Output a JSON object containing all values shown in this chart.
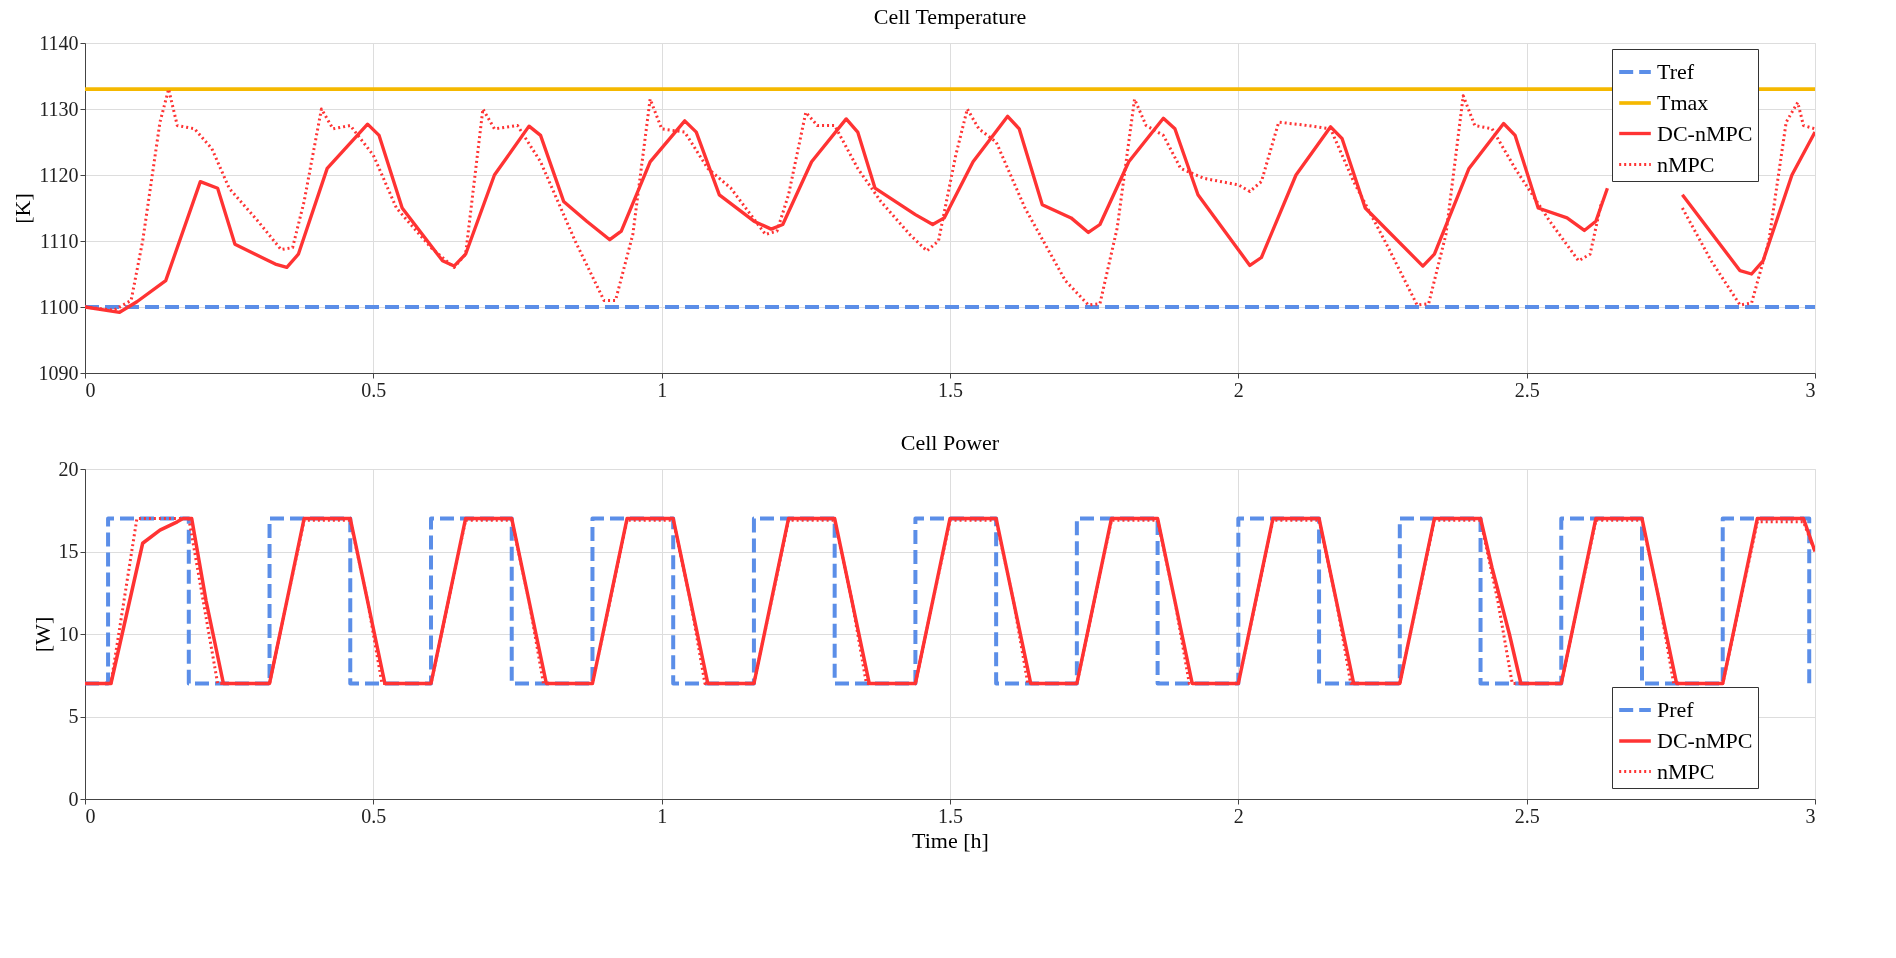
{
  "chart_data": [
    {
      "type": "line",
      "title": "Cell Temperature",
      "ylabel": "[K]",
      "xlim": [
        0,
        3
      ],
      "xticks": [
        0,
        0.5,
        1,
        1.5,
        2,
        2.5,
        3
      ],
      "ylim": [
        1090,
        1140
      ],
      "yticks": [
        1090,
        1100,
        1110,
        1120,
        1130,
        1140
      ],
      "grid": true,
      "legend": "top right",
      "series": [
        {
          "name": "Tref",
          "color": "#5b8ee8",
          "line_style": "dashed",
          "x": [
            0,
            3
          ],
          "values": [
            1100,
            1100
          ]
        },
        {
          "name": "Tmax",
          "color": "#f5b800",
          "line_style": "solid",
          "x": [
            0,
            3
          ],
          "values": [
            1133,
            1133
          ]
        },
        {
          "name": "DC-nMPC",
          "color": "#ff3333",
          "line_style": "solid",
          "x": [
            0,
            0.06,
            0.09,
            0.14,
            0.2,
            0.23,
            0.26,
            0.33,
            0.35,
            0.37,
            0.42,
            0.49,
            0.51,
            0.55,
            0.62,
            0.64,
            0.66,
            0.71,
            0.77,
            0.79,
            0.83,
            0.87,
            0.91,
            0.93,
            0.98,
            1.04,
            1.06,
            1.1,
            1.16,
            1.19,
            1.21,
            1.26,
            1.32,
            1.34,
            1.37,
            1.44,
            1.47,
            1.49,
            1.54,
            1.6,
            1.62,
            1.66,
            1.71,
            1.74,
            1.76,
            1.81,
            1.87,
            1.89,
            1.93,
            2.02,
            2.04,
            2.1,
            2.16,
            2.18,
            2.22,
            2.32,
            2.34,
            2.4,
            2.46,
            2.48,
            2.52,
            2.57,
            2.6,
            2.62,
            2.64,
            2.7,
            2.77,
            2.87,
            2.89,
            2.91,
            2.96,
            3.0
          ],
          "values": [
            1100,
            1099.2,
            1100.8,
            1104,
            1119,
            1118,
            1109.5,
            1106.5,
            1106,
            1108,
            1121,
            1127.7,
            1126,
            1115,
            1107,
            1106.2,
            1108,
            1120,
            1127.4,
            1126,
            1116,
            1113,
            1110.2,
            1111.5,
            1122,
            1128.2,
            1126.5,
            1117,
            1113,
            1111.8,
            1112.5,
            1122,
            1128.5,
            1126.5,
            1118,
            1114,
            1112.5,
            1113.5,
            1122,
            1128.9,
            1127,
            1115.5,
            1113.5,
            1111.3,
            1112.5,
            1122,
            1128.6,
            1127,
            1117,
            1106.3,
            1107.5,
            1120,
            1127.3,
            1125.5,
            1115,
            1106.2,
            1108,
            1121,
            1127.8,
            1126,
            1115,
            1113.5,
            1111.6,
            1113,
            1118,
            null,
            1117,
            1105.5,
            1105,
            1107,
            1120,
            1126.5
          ]
        },
        {
          "name": "nMPC",
          "color": "#ff3333",
          "line_style": "dotted",
          "x": [
            0,
            0.05,
            0.08,
            0.1,
            0.13,
            0.145,
            0.16,
            0.19,
            0.22,
            0.25,
            0.3,
            0.34,
            0.36,
            0.38,
            0.41,
            0.43,
            0.46,
            0.5,
            0.54,
            0.6,
            0.64,
            0.66,
            0.69,
            0.71,
            0.75,
            0.79,
            0.85,
            0.9,
            0.92,
            0.95,
            0.98,
            1.0,
            1.04,
            1.08,
            1.12,
            1.18,
            1.2,
            1.22,
            1.25,
            1.27,
            1.3,
            1.34,
            1.38,
            1.43,
            1.46,
            1.48,
            1.51,
            1.53,
            1.55,
            1.58,
            1.63,
            1.7,
            1.74,
            1.76,
            1.79,
            1.82,
            1.84,
            1.87,
            1.9,
            1.94,
            2.0,
            2.02,
            2.04,
            2.07,
            2.12,
            2.16,
            2.2,
            2.26,
            2.31,
            2.33,
            2.36,
            2.39,
            2.41,
            2.44,
            2.48,
            2.54,
            2.59,
            2.61,
            2.63,
            2.7,
            2.77,
            2.82,
            2.87,
            2.89,
            2.92,
            2.95,
            2.97,
            2.98,
            3.0
          ],
          "values": [
            1100,
            1099.5,
            1101,
            1110,
            1128,
            1133,
            1127.5,
            1127,
            1124,
            1118,
            1113,
            1108.7,
            1109,
            1116,
            1130,
            1127,
            1127.5,
            1123,
            1115,
            1109,
            1106,
            1108,
            1130,
            1127,
            1127.5,
            1122,
            1110,
            1101,
            1101,
            1111,
            1131.5,
            1127,
            1126.5,
            1121,
            1118,
            1111,
            1111.5,
            1117,
            1129.5,
            1127.5,
            1127.5,
            1121,
            1116,
            1111,
            1108.5,
            1110,
            1123,
            1130,
            1127,
            1125,
            1115,
            1104,
            1100.3,
            1100.5,
            1112,
            1131.5,
            1127.5,
            1126,
            1121,
            1119.5,
            1118.5,
            1117.5,
            1119,
            1128,
            1127.5,
            1127,
            1119,
            1109,
            1100.3,
            1100.5,
            1111,
            1132,
            1127.5,
            1127,
            1121,
            1113,
            1107,
            1108,
            1116,
            null,
            1115,
            1107,
            1100.3,
            1100.6,
            1110,
            1128,
            1131,
            1127.5,
            1127
          ]
        }
      ]
    },
    {
      "type": "line",
      "title": "Cell Power",
      "xlabel": "Time [h]",
      "ylabel": "[W]",
      "xlim": [
        0,
        3
      ],
      "xticks": [
        0,
        0.5,
        1,
        1.5,
        2,
        2.5,
        3
      ],
      "ylim": [
        0,
        20
      ],
      "yticks": [
        0,
        5,
        10,
        15,
        20
      ],
      "grid": true,
      "legend": "bottom right",
      "series": [
        {
          "name": "Pref",
          "color": "#5b8ee8",
          "line_style": "dashed",
          "x": [
            0,
            0.04,
            0.04,
            0.18,
            0.18,
            0.32,
            0.32,
            0.46,
            0.46,
            0.6,
            0.6,
            0.74,
            0.74,
            0.88,
            0.88,
            1.02,
            1.02,
            1.16,
            1.16,
            1.3,
            1.3,
            1.44,
            1.44,
            1.58,
            1.58,
            1.72,
            1.72,
            1.86,
            1.86,
            2.0,
            2.0,
            2.14,
            2.14,
            2.28,
            2.28,
            2.42,
            2.42,
            2.56,
            2.56,
            2.7,
            2.7,
            2.84,
            2.84,
            2.99,
            2.99,
            3.0
          ],
          "values": [
            7,
            7,
            17,
            17,
            7,
            7,
            17,
            17,
            7,
            7,
            17,
            17,
            7,
            7,
            17,
            17,
            7,
            7,
            17,
            17,
            7,
            7,
            17,
            17,
            7,
            7,
            17,
            17,
            7,
            7,
            17,
            17,
            7,
            7,
            17,
            17,
            7,
            7,
            17,
            17,
            7,
            7,
            17,
            17,
            7,
            7
          ]
        },
        {
          "name": "DC-nMPC",
          "color": "#ff3333",
          "line_style": "solid",
          "x": [
            0,
            0.045,
            0.1,
            0.13,
            0.16,
            0.17,
            0.185,
            0.21,
            0.24,
            0.32,
            0.38,
            0.46,
            0.49,
            0.52,
            0.6,
            0.66,
            0.74,
            0.77,
            0.8,
            0.88,
            0.94,
            1.02,
            1.05,
            1.08,
            1.16,
            1.22,
            1.3,
            1.33,
            1.36,
            1.44,
            1.5,
            1.58,
            1.61,
            1.64,
            1.72,
            1.78,
            1.86,
            1.89,
            1.92,
            2.0,
            2.06,
            2.14,
            2.17,
            2.2,
            2.28,
            2.34,
            2.42,
            2.44,
            2.47,
            2.49,
            2.56,
            2.62,
            2.7,
            2.73,
            2.76,
            2.84,
            2.9,
            2.98,
            3.0
          ],
          "values": [
            7,
            7,
            15.5,
            16.3,
            16.8,
            17,
            17,
            12,
            7,
            7,
            17,
            17,
            12,
            7,
            7,
            17,
            17,
            12,
            7,
            7,
            17,
            17,
            12,
            7,
            7,
            17,
            17,
            12,
            7,
            7,
            17,
            17,
            12,
            7,
            7,
            17,
            17,
            12,
            7,
            7,
            17,
            17,
            12,
            7,
            7,
            17,
            17,
            14,
            10,
            7,
            7,
            17,
            17,
            12,
            7,
            7,
            17,
            17,
            15
          ]
        },
        {
          "name": "nMPC",
          "color": "#ff3333",
          "line_style": "dotted",
          "x": [
            0,
            0.045,
            0.09,
            0.18,
            0.2,
            0.23,
            0.32,
            0.38,
            0.46,
            0.49,
            0.515,
            0.6,
            0.66,
            0.74,
            0.77,
            0.795,
            0.88,
            0.94,
            1.02,
            1.05,
            1.075,
            1.16,
            1.22,
            1.3,
            1.33,
            1.355,
            1.44,
            1.5,
            1.58,
            1.61,
            1.635,
            1.72,
            1.78,
            1.86,
            1.89,
            1.915,
            2.0,
            2.06,
            2.14,
            2.17,
            2.195,
            2.28,
            2.34,
            2.42,
            2.45,
            2.475,
            2.56,
            2.62,
            2.7,
            2.73,
            2.755,
            2.84,
            2.9,
            2.98,
            3.0
          ],
          "values": [
            7,
            7,
            17,
            17,
            13,
            7,
            7,
            16.9,
            16.9,
            12,
            7,
            7,
            16.9,
            16.9,
            12,
            7,
            7,
            16.9,
            16.9,
            12,
            7,
            7,
            16.9,
            16.9,
            12,
            7,
            7,
            16.9,
            16.9,
            12,
            7,
            7,
            16.9,
            16.9,
            12,
            7,
            7,
            16.9,
            16.9,
            12,
            7,
            7,
            16.9,
            16.9,
            12,
            7,
            7,
            16.9,
            16.9,
            12,
            7,
            7,
            16.8,
            16.8,
            15
          ]
        }
      ]
    }
  ]
}
